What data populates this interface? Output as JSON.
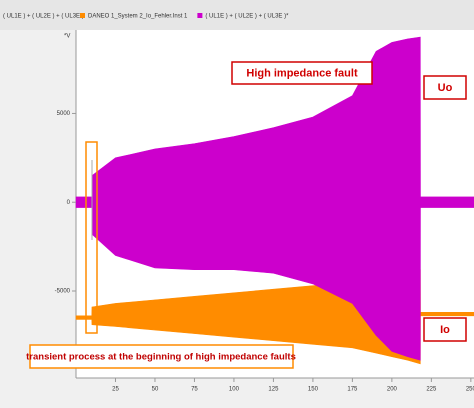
{
  "chart_data": {
    "type": "band",
    "legend_header": "( UL1E ) + ( UL2E ) + ( UL3E )",
    "ylabel": "*V",
    "annotations": {
      "fault": "High impedance fault",
      "uo": "Uo",
      "io": "Io",
      "transient": "transient process at the beginning of high impedance faults"
    },
    "x": [
      0,
      10,
      10.1,
      25,
      50,
      75,
      100,
      125,
      150,
      175,
      190,
      200,
      210,
      218,
      218.1,
      252
    ],
    "series": [
      {
        "name": "DANEO 1_System 2_Io_Fehler.Inst 1",
        "color": "#ff8c00",
        "upper": [
          -6400,
          -6400,
          -5900,
          -5700,
          -5500,
          -5300,
          -5100,
          -4900,
          -4700,
          -4500,
          -4300,
          -4100,
          -3900,
          -3800,
          -6200,
          -6200
        ],
        "lower": [
          -6600,
          -6600,
          -6900,
          -7000,
          -7200,
          -7400,
          -7600,
          -7800,
          -8000,
          -8200,
          -8500,
          -8700,
          -8900,
          -9100,
          -6400,
          -6400
        ]
      },
      {
        "name": "( UL1E ) + ( UL2E ) + ( UL3E )*",
        "color": "#cc00cc",
        "upper": [
          300,
          300,
          1500,
          2500,
          3000,
          3300,
          3700,
          4200,
          4800,
          6000,
          8500,
          9000,
          9200,
          9300,
          300,
          300
        ],
        "lower": [
          -300,
          -300,
          -1800,
          -3000,
          -3700,
          -3800,
          -3800,
          -4000,
          -4600,
          -5700,
          -7500,
          -8400,
          -8700,
          -8900,
          -300,
          -300
        ]
      }
    ],
    "xlim": [
      0,
      252
    ],
    "xticks": [
      25,
      50,
      75,
      100,
      125,
      150,
      175,
      200,
      225,
      250
    ],
    "ylim": [
      -9900,
      9700
    ],
    "yticks": [
      5000,
      0,
      -5000
    ],
    "grid": false
  }
}
